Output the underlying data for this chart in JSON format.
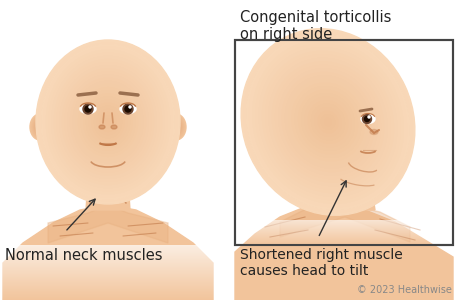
{
  "background_color": "#ffffff",
  "title_right": "Congenital torticollis\non right side",
  "label_left": "Normal neck muscles",
  "label_right": "Shortened right muscle\ncauses head to tilt",
  "copyright": "© 2023 Healthwise",
  "title_fontsize": 10.5,
  "label_fontsize": 10.5,
  "copyright_fontsize": 7,
  "skin_light": "#F2C49B",
  "skin_mid": "#E8B080",
  "skin_dark": "#D49060",
  "skin_shadow": "#C07848",
  "skin_very_light": "#F8D8B8",
  "muscle_color": "#CC8888",
  "box_color": "#444444",
  "text_color": "#222222",
  "arrow_color": "#333333"
}
